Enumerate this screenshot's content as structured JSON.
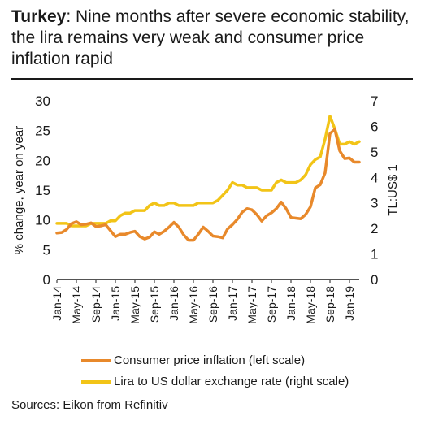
{
  "title": {
    "lead": "Turkey",
    "rest": ": Nine months after severe economic stability, the lira remains very weak and consumer price inflation rapid"
  },
  "source": "Sources: Eikon from Refinitiv",
  "colors": {
    "cpi": "#e8892b",
    "lira": "#f2c417",
    "text": "#1a1a1a"
  },
  "chart_data": {
    "type": "line",
    "ylabel_left": "% change, year on year",
    "ylabel_right": "TL:US$ 1",
    "ylim_left": [
      0,
      30
    ],
    "ylim_right": [
      0,
      7
    ],
    "yticks_left": [
      "0",
      "5",
      "10",
      "15",
      "20",
      "25",
      "30"
    ],
    "yticks_right": [
      "0",
      "1",
      "2",
      "3",
      "4",
      "5",
      "6",
      "7"
    ],
    "x_tick_labels": [
      "Jan-14",
      "May-14",
      "Sep-14",
      "Jan-15",
      "May-15",
      "Sep-15",
      "Jan-16",
      "May-16",
      "Sep-16",
      "Jan-17",
      "May-17",
      "Sep-17",
      "Jan-18",
      "May-18",
      "Sep-18",
      "Jan-19"
    ],
    "x_months": [
      "Jan-14",
      "Feb-14",
      "Mar-14",
      "Apr-14",
      "May-14",
      "Jun-14",
      "Jul-14",
      "Aug-14",
      "Sep-14",
      "Oct-14",
      "Nov-14",
      "Dec-14",
      "Jan-15",
      "Feb-15",
      "Mar-15",
      "Apr-15",
      "May-15",
      "Jun-15",
      "Jul-15",
      "Aug-15",
      "Sep-15",
      "Oct-15",
      "Nov-15",
      "Dec-15",
      "Jan-16",
      "Feb-16",
      "Mar-16",
      "Apr-16",
      "May-16",
      "Jun-16",
      "Jul-16",
      "Aug-16",
      "Sep-16",
      "Oct-16",
      "Nov-16",
      "Dec-16",
      "Jan-17",
      "Feb-17",
      "Mar-17",
      "Apr-17",
      "May-17",
      "Jun-17",
      "Jul-17",
      "Aug-17",
      "Sep-17",
      "Oct-17",
      "Nov-17",
      "Dec-17",
      "Jan-18",
      "Feb-18",
      "Mar-18",
      "Apr-18",
      "May-18",
      "Jun-18",
      "Jul-18",
      "Aug-18",
      "Sep-18",
      "Oct-18",
      "Nov-18",
      "Dec-18",
      "Jan-19",
      "Feb-19",
      "Mar-19"
    ],
    "series": [
      {
        "name": "Consumer price inflation (left scale)",
        "axis": "left",
        "values": [
          7.8,
          7.9,
          8.4,
          9.4,
          9.7,
          9.2,
          9.3,
          9.5,
          8.9,
          9.0,
          9.2,
          8.2,
          7.2,
          7.6,
          7.6,
          7.9,
          8.1,
          7.2,
          6.8,
          7.1,
          8.0,
          7.6,
          8.1,
          8.8,
          9.6,
          8.8,
          7.5,
          6.6,
          6.6,
          7.6,
          8.8,
          8.1,
          7.3,
          7.2,
          7.0,
          8.5,
          9.2,
          10.1,
          11.3,
          11.9,
          11.7,
          10.9,
          9.8,
          10.7,
          11.2,
          11.9,
          13.0,
          11.9,
          10.4,
          10.3,
          10.2,
          10.9,
          12.2,
          15.4,
          15.9,
          17.9,
          24.5,
          25.2,
          21.6,
          20.3,
          20.4,
          19.7,
          19.7
        ]
      },
      {
        "name": "Lira to US dollar exchange rate (right scale)",
        "axis": "right",
        "values": [
          2.2,
          2.2,
          2.2,
          2.1,
          2.1,
          2.1,
          2.1,
          2.2,
          2.2,
          2.2,
          2.2,
          2.3,
          2.3,
          2.5,
          2.6,
          2.6,
          2.7,
          2.7,
          2.7,
          2.9,
          3.0,
          2.9,
          2.9,
          3.0,
          3.0,
          2.9,
          2.9,
          2.9,
          2.9,
          3.0,
          3.0,
          3.0,
          3.0,
          3.1,
          3.3,
          3.5,
          3.8,
          3.7,
          3.7,
          3.6,
          3.6,
          3.6,
          3.5,
          3.5,
          3.5,
          3.8,
          3.9,
          3.8,
          3.8,
          3.8,
          3.9,
          4.1,
          4.5,
          4.7,
          4.8,
          5.5,
          6.4,
          5.9,
          5.3,
          5.3,
          5.4,
          5.3,
          5.4
        ]
      }
    ],
    "legend": "bottom"
  }
}
